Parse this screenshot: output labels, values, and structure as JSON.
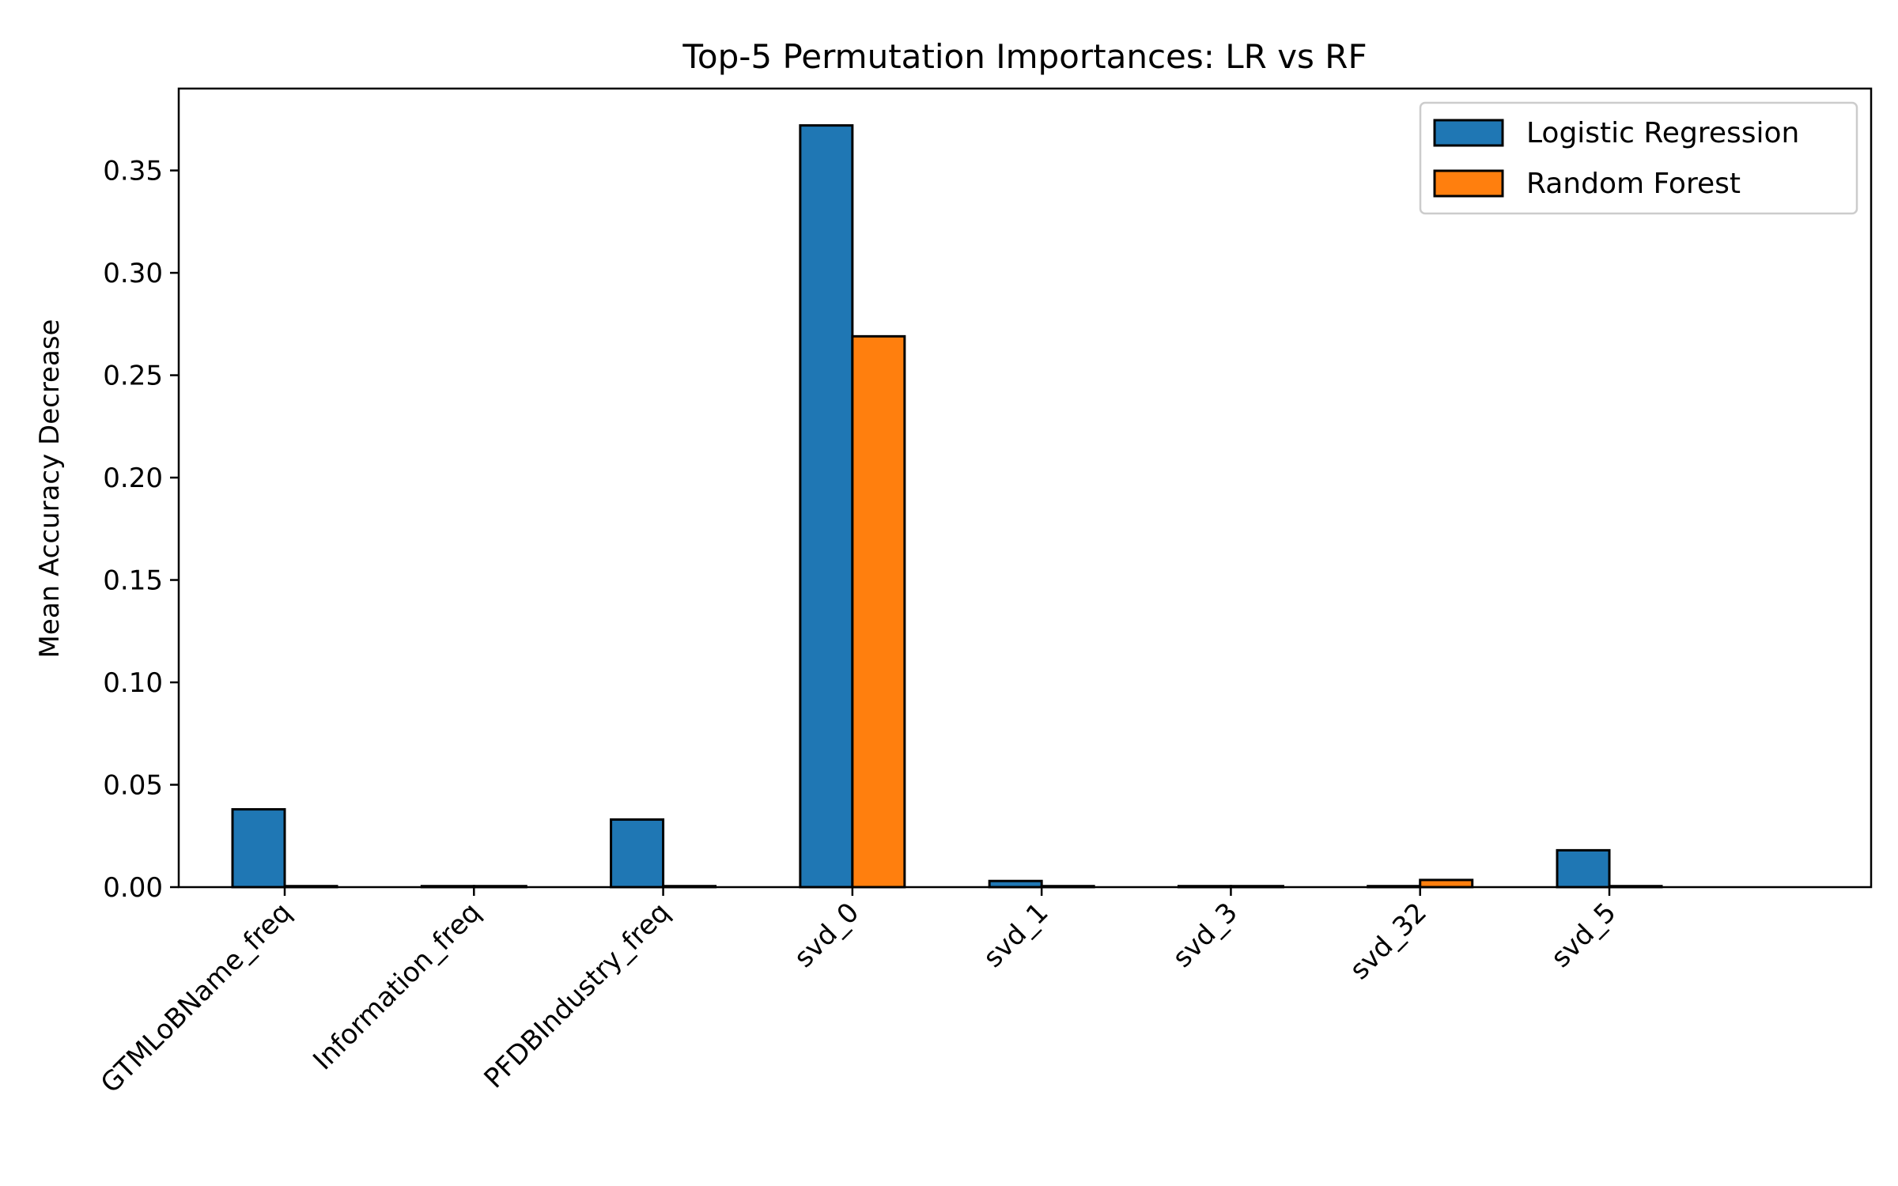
{
  "chart_data": {
    "type": "bar",
    "title": "Top-5 Permutation Importances: LR vs RF",
    "xlabel": "",
    "ylabel": "Mean Accuracy Decrease",
    "categories": [
      "GTMLoBName_freq",
      "Information_freq",
      "PFDBIndustry_freq",
      "svd_0",
      "svd_1",
      "svd_3",
      "svd_32",
      "svd_5"
    ],
    "series": [
      {
        "name": "Logistic Regression",
        "color": "#1f77b4",
        "values": [
          0.038,
          0.0005,
          0.033,
          0.372,
          0.003,
          0.0005,
          0.0005,
          0.018
        ]
      },
      {
        "name": "Random Forest",
        "color": "#ff7f0e",
        "values": [
          0.0005,
          0.0005,
          0.0005,
          0.269,
          0.0005,
          0.0005,
          0.0035,
          0.0005
        ]
      }
    ],
    "ylim": [
      0,
      0.39
    ],
    "yticks": [
      "0.00",
      "0.05",
      "0.10",
      "0.15",
      "0.20",
      "0.25",
      "0.30",
      "0.35"
    ],
    "legend": "top-right",
    "grid": false
  }
}
